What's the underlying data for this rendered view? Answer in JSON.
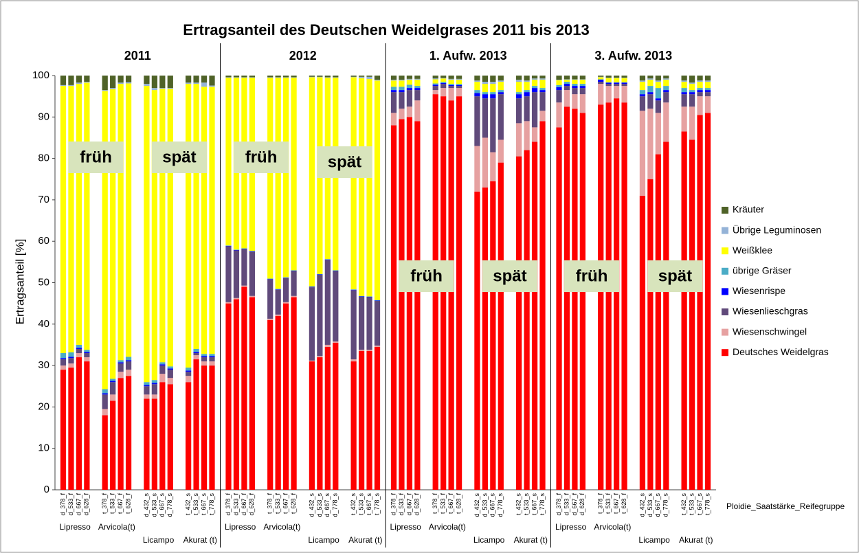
{
  "chart_data": {
    "type": "bar",
    "stacked": true,
    "title": "Ertragsanteil des Deutschen Weidelgrases 2011 bis 2013",
    "y_label": "Ertragsanteil [%]",
    "x_label": "Ploidie_Saatstärke_Reifegruppe",
    "legend": "right",
    "ylim": [
      0,
      100
    ],
    "yticks": [
      0,
      10,
      20,
      30,
      40,
      50,
      60,
      70,
      80,
      90,
      100
    ],
    "panels": [
      {
        "title": "2011",
        "annotations": [
          "früh",
          "spät"
        ]
      },
      {
        "title": "2012",
        "annotations": [
          "früh",
          "spät"
        ]
      },
      {
        "title": "1. Aufw. 2013",
        "annotations": [
          "früh",
          "spät"
        ]
      },
      {
        "title": "3. Aufw. 2013",
        "annotations": [
          "früh",
          "spät"
        ]
      }
    ],
    "group_labels": [
      "Lipresso",
      "Arvicola(t)",
      "Licampo",
      "Akurat (t)",
      "Lipresso",
      "Arvicola(t)",
      "Licampo",
      "Akurat (t)",
      "Lipresso",
      "Arvicola(t)",
      "Licampo",
      "Akurat (t)",
      "Lipresso",
      "Arvicola(t)",
      "Licampo",
      "Akurat (t)"
    ],
    "categories": [
      "d_378_f",
      "d_533_f",
      "d_667_f",
      "d_628_f",
      "t_378_f",
      "t_533_f",
      "t_667_f",
      "t_628_f",
      "d_432_s",
      "d_533_s",
      "d_667_s",
      "d_778_s",
      "t_432_s",
      "t_533_s",
      "t_667_s",
      "t_778_s",
      "d_378_f",
      "d_533_f",
      "d_667_f",
      "d_628_f",
      "t_378_f",
      "t_533_f",
      "t_667_f",
      "t_628_f",
      "d_432_s",
      "d_533_s",
      "d_667_s",
      "d_778_s",
      "t_432_s",
      "t_533_s",
      "t_667_s",
      "t_778_s",
      "d_378_f",
      "d_533_f",
      "d_667_f",
      "d_628_f",
      "t_378_f",
      "t_533_f",
      "t_667_f",
      "t_628_f",
      "d_432_s",
      "d_533_s",
      "d_667_s",
      "d_778_s",
      "t_432_s",
      "t_533_s",
      "t_667_s",
      "t_778_s",
      "d_378_f",
      "d_533_f",
      "d_667_f",
      "d_628_f",
      "t_378_f",
      "t_533_f",
      "t_667_f",
      "t_628_f",
      "d_432_s",
      "d_533_s",
      "d_667_s",
      "d_778_s",
      "t_432_s",
      "t_533_s",
      "t_667_s",
      "t_778_s"
    ],
    "series": [
      {
        "name": "Deutsches Weidelgras",
        "color": "#ff0000",
        "values": [
          29,
          29.5,
          32,
          31,
          18,
          21.5,
          27,
          27.5,
          22,
          22,
          26,
          25.5,
          26,
          31.5,
          30,
          30,
          45,
          46,
          49,
          46.5,
          41,
          42,
          45,
          46.5,
          31,
          32,
          34.5,
          35.5,
          31,
          33.5,
          33.5,
          34.5,
          88,
          89.5,
          90,
          89,
          95.5,
          95,
          94,
          95,
          72,
          73,
          74.5,
          79,
          80.5,
          82,
          84,
          89,
          87.5,
          92.5,
          92,
          91,
          93,
          93.5,
          94.5,
          93.5,
          71,
          75,
          81,
          84,
          86.5,
          84.5,
          90.5,
          91
        ]
      },
      {
        "name": "Wiesenschwingel",
        "color": "#e6a1a1",
        "values": [
          1,
          1,
          1,
          1,
          1.5,
          1.5,
          1.5,
          1.5,
          1,
          1,
          2,
          1.5,
          1.5,
          1,
          1,
          1,
          0.3,
          0.3,
          0.3,
          0.3,
          0.3,
          0.3,
          0.3,
          0.3,
          0.2,
          0.3,
          0.5,
          0.3,
          0.5,
          0.3,
          0.3,
          0.3,
          3,
          2.5,
          2.5,
          5,
          1,
          2,
          3,
          2,
          11,
          12,
          7,
          5.5,
          8,
          7,
          3.5,
          2.5,
          6,
          4,
          3.5,
          4.5,
          5,
          4,
          3,
          4,
          20.5,
          17,
          10,
          9.5,
          6,
          8,
          4.5,
          4
        ]
      },
      {
        "name": "Wiesenlieschgras",
        "color": "#604a7b",
        "values": [
          1.5,
          1.3,
          1,
          1,
          3.5,
          3,
          2,
          2,
          2,
          2.5,
          2,
          2,
          1,
          0.5,
          1,
          1,
          13.5,
          11.5,
          8.8,
          10.7,
          9.5,
          6,
          5.8,
          6,
          17.7,
          19.6,
          20.5,
          17,
          16.7,
          12.8,
          12.7,
          10.8,
          5,
          4,
          4,
          2.5,
          1,
          1,
          0.5,
          0.5,
          12,
          9.5,
          13,
          11,
          6,
          6,
          8.5,
          4.5,
          3,
          1,
          1.5,
          1.5,
          0.5,
          0.5,
          0.5,
          0.5,
          3.5,
          3.5,
          3,
          2.5,
          3,
          3,
          1,
          1
        ]
      },
      {
        "name": "Wiesenrispe",
        "color": "#0000ff",
        "values": [
          0.3,
          0.3,
          0.3,
          0.3,
          0.3,
          0.3,
          0.3,
          0.3,
          0.3,
          0.3,
          0.3,
          0.3,
          0.3,
          0.3,
          0.3,
          0.3,
          0.1,
          0.1,
          0.1,
          0.1,
          0.1,
          0.1,
          0.1,
          0.1,
          0.1,
          0.1,
          0.1,
          0.1,
          0.1,
          0.1,
          0.1,
          0.1,
          0.5,
          0.5,
          0.5,
          0.5,
          0.3,
          0.2,
          0.2,
          0.2,
          0.8,
          1,
          1,
          0.5,
          1,
          1,
          1,
          0.5,
          0.7,
          0.5,
          0.5,
          0.5,
          0.5,
          0.3,
          0.3,
          0.3,
          0.5,
          0.5,
          0.5,
          0.5,
          0.5,
          0.5,
          0.5,
          0.5
        ]
      },
      {
        "name": "übrige Gräser",
        "color": "#4bacc6",
        "values": [
          1.2,
          1.1,
          0.7,
          0.5,
          1,
          0.5,
          0.5,
          0.8,
          0.7,
          0.7,
          0.5,
          0.5,
          0.7,
          0.7,
          0.5,
          0.5,
          0.1,
          0.1,
          0.1,
          0.1,
          0.1,
          0.1,
          0.1,
          0.1,
          0.1,
          0.1,
          0.1,
          0.1,
          0.1,
          0.1,
          0.1,
          0.1,
          0.8,
          0.8,
          0.8,
          0.5,
          0.3,
          0.3,
          0.3,
          0.3,
          0.7,
          0.5,
          0.5,
          0.5,
          0.5,
          0.5,
          0.5,
          0.5,
          0.5,
          0.5,
          0.5,
          0.5,
          0.1,
          0.1,
          0.1,
          0.1,
          1,
          1.5,
          2.5,
          1,
          1,
          0.5,
          0.5,
          0.5
        ]
      },
      {
        "name": "Weißklee",
        "color": "#ffff00",
        "values": [
          64.5,
          64.3,
          63,
          64.5,
          72,
          69.9,
          66.7,
          66,
          71.5,
          70,
          66,
          67,
          68.5,
          64,
          64.5,
          64.5,
          40.5,
          41.5,
          41.2,
          41.8,
          48.5,
          51,
          48.2,
          46.5,
          50.5,
          47.5,
          43.8,
          46.5,
          51.2,
          52.6,
          52.5,
          53,
          1.5,
          1.5,
          1.2,
          1.5,
          1,
          0.8,
          1,
          1,
          2,
          2,
          2,
          2,
          2.5,
          2,
          1.5,
          2,
          1.2,
          0.5,
          1,
          1,
          0.5,
          1,
          1,
          1,
          2,
          1.5,
          1.5,
          1.5,
          1.5,
          1.5,
          1.5,
          1.5
        ]
      },
      {
        "name": "Übrige Leguminosen",
        "color": "#95b3d7",
        "values": [
          0.2,
          0.2,
          0.3,
          0.2,
          0.2,
          0.3,
          0.3,
          0.3,
          0.5,
          0.5,
          0.2,
          0.2,
          0.3,
          0.3,
          1,
          0.3,
          0.1,
          0.1,
          0.1,
          0.1,
          0.1,
          0.1,
          0.1,
          0.1,
          0.1,
          0.1,
          0.1,
          0.1,
          0.1,
          0.3,
          0.5,
          0.2,
          0.2,
          0.2,
          0.2,
          0.2,
          0.2,
          0.1,
          0.2,
          0.2,
          0.3,
          0.5,
          0.5,
          0.3,
          0.5,
          0.3,
          0.3,
          0.3,
          0.1,
          0.1,
          0.1,
          0.1,
          0.1,
          0.1,
          0.1,
          0.1,
          0.3,
          0.3,
          0.3,
          0.3,
          0.3,
          0.3,
          0.3,
          0.3
        ]
      },
      {
        "name": "Kräuter",
        "color": "#4f6228",
        "values": [
          2.3,
          2.3,
          1.7,
          1.5,
          3.5,
          3,
          1.7,
          1.6,
          2,
          3,
          3,
          3,
          1.7,
          1.7,
          1.7,
          2.4,
          0.4,
          0.4,
          0.4,
          0.4,
          0.4,
          0.4,
          0.4,
          0.4,
          0.3,
          0.3,
          0.4,
          0.4,
          0.3,
          0.3,
          0.3,
          1,
          1,
          1,
          0.8,
          0.8,
          0.7,
          0.6,
          0.8,
          0.8,
          1.2,
          1.5,
          1.5,
          1.2,
          1,
          1.2,
          0.7,
          0.7,
          1,
          0.9,
          0.9,
          0.9,
          0.3,
          0.5,
          0.5,
          0.5,
          1.2,
          0.7,
          1.2,
          0.7,
          1.2,
          1.7,
          1.2,
          1.2
        ]
      }
    ]
  }
}
